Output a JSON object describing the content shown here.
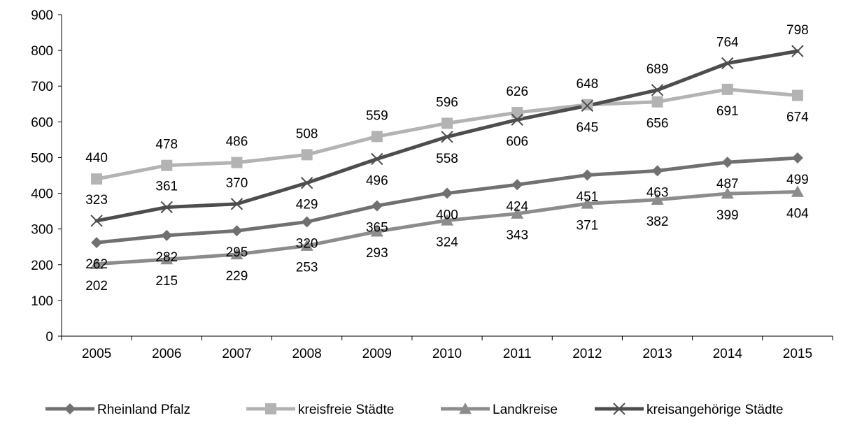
{
  "chart_data": {
    "type": "line",
    "title": "",
    "xlabel": "",
    "ylabel": "",
    "ylim": [
      0,
      900
    ],
    "y_ticks": [
      0,
      100,
      200,
      300,
      400,
      500,
      600,
      700,
      800,
      900
    ],
    "grid": false,
    "legend_position": "bottom",
    "categories": [
      "2005",
      "2006",
      "2007",
      "2008",
      "2009",
      "2010",
      "2011",
      "2012",
      "2013",
      "2014",
      "2015"
    ],
    "series": [
      {
        "name": "Rheinland Pfalz",
        "color": "#707070",
        "marker": "diamond",
        "label_position": "below",
        "values": [
          262,
          282,
          295,
          320,
          365,
          400,
          424,
          451,
          463,
          487,
          499
        ]
      },
      {
        "name": "kreisfreie Städte",
        "color": "#b3b3b3",
        "marker": "square",
        "label_position": "above",
        "label_position_overrides": {
          "2012": "above",
          "2013": "below",
          "2014": "below",
          "2015": "below"
        },
        "values": [
          440,
          478,
          486,
          508,
          559,
          596,
          626,
          648,
          656,
          691,
          674
        ]
      },
      {
        "name": "Landkreise",
        "color": "#8c8c8c",
        "marker": "triangle",
        "label_position": "below",
        "values": [
          202,
          215,
          229,
          253,
          293,
          324,
          343,
          371,
          382,
          399,
          404
        ]
      },
      {
        "name": "kreisangehörige Städte",
        "color": "#4d4d4d",
        "marker": "x",
        "label_position": "below",
        "label_position_overrides": {
          "2005": "above",
          "2006": "above",
          "2007": "above",
          "2012": "below",
          "2013": "above",
          "2014": "above",
          "2015": "above"
        },
        "values": [
          323,
          361,
          370,
          429,
          496,
          558,
          606,
          645,
          689,
          764,
          798
        ]
      }
    ]
  }
}
